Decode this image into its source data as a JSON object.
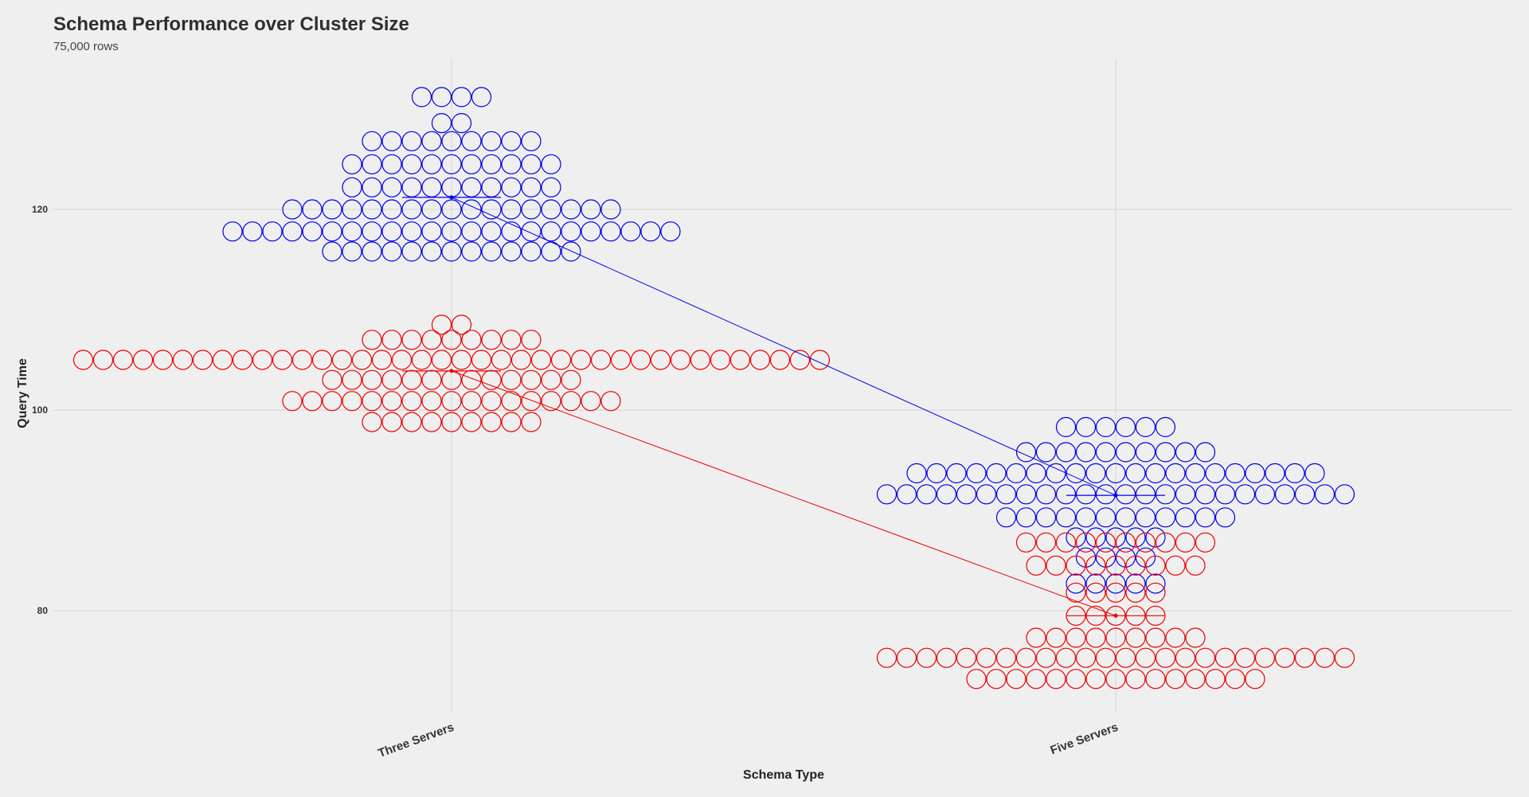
{
  "chart_data": {
    "type": "beeswarm",
    "title": "Schema Performance over Cluster Size",
    "subtitle": "75,000 rows",
    "xlabel": "Schema Type",
    "ylabel": "Query Time",
    "categories": [
      "Three Servers",
      "Five Servers"
    ],
    "y_ticks": [
      80,
      100,
      120
    ],
    "ylim": [
      67,
      135
    ],
    "grid": true,
    "series": [
      {
        "color": "#0000ee",
        "means": [
          121.2,
          91.5
        ],
        "bins": [
          [
            {
              "y": 131.2,
              "count": 4
            },
            {
              "y": 128.6,
              "count": 2
            },
            {
              "y": 126.8,
              "count": 9
            },
            {
              "y": 124.5,
              "count": 11
            },
            {
              "y": 122.2,
              "count": 11
            },
            {
              "y": 120.0,
              "count": 17
            },
            {
              "y": 117.8,
              "count": 23
            },
            {
              "y": 115.8,
              "count": 13
            }
          ],
          [
            {
              "y": 98.3,
              "count": 6
            },
            {
              "y": 95.8,
              "count": 10
            },
            {
              "y": 93.7,
              "count": 21
            },
            {
              "y": 91.6,
              "count": 24
            },
            {
              "y": 89.3,
              "count": 12
            },
            {
              "y": 87.3,
              "count": 5
            },
            {
              "y": 85.3,
              "count": 4
            },
            {
              "y": 82.7,
              "count": 5
            }
          ]
        ]
      },
      {
        "color": "#ee0000",
        "means": [
          103.9,
          79.5
        ],
        "bins": [
          [
            {
              "y": 108.5,
              "count": 2
            },
            {
              "y": 107.0,
              "count": 9
            },
            {
              "y": 105.0,
              "count": 38
            },
            {
              "y": 103.0,
              "count": 13
            },
            {
              "y": 100.9,
              "count": 17
            },
            {
              "y": 98.8,
              "count": 9
            }
          ],
          [
            {
              "y": 86.8,
              "count": 10
            },
            {
              "y": 84.5,
              "count": 9
            },
            {
              "y": 81.8,
              "count": 5
            },
            {
              "y": 79.5,
              "count": 5
            },
            {
              "y": 77.3,
              "count": 9
            },
            {
              "y": 75.3,
              "count": 24
            },
            {
              "y": 73.2,
              "count": 15
            }
          ]
        ]
      }
    ]
  }
}
